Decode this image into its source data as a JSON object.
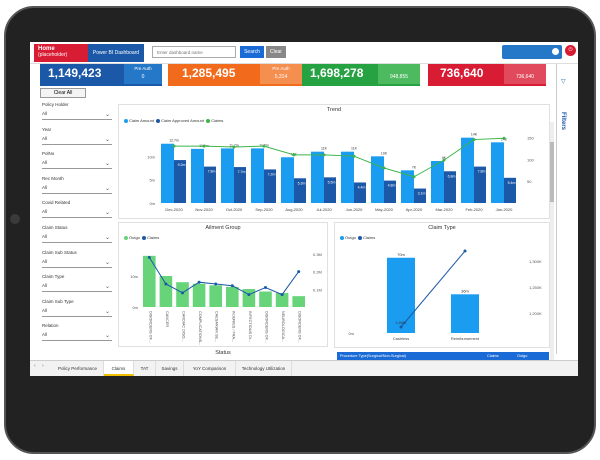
{
  "topbar": {
    "home_label": "Home",
    "home_sub": "(placeholder)",
    "app_title": "Power BI Dashboard",
    "search_placeholder": "Enter dashboard name",
    "search_label": "Search",
    "clear_label": "Clear"
  },
  "kpis": [
    {
      "value": "1,149,423",
      "sub_label": "Pre Auth",
      "sub_value": "0",
      "color": "#1b58a8",
      "sub_color": "#2578c8"
    },
    {
      "value": "1,285,495",
      "sub_label": "Pre Auth",
      "sub_value": "5,314",
      "color": "#f26b1d",
      "sub_color": "#f58f50"
    },
    {
      "value": "1,698,278",
      "sub_label": "",
      "sub_value": "948,855",
      "color": "#27a243",
      "sub_color": "#4dba60"
    },
    {
      "value": "736,640",
      "sub_label": "",
      "sub_value": "736,640",
      "color": "#d81c34",
      "sub_color": "#e04a5c"
    }
  ],
  "filters_panel": {
    "clear_all": "Clear All",
    "items": [
      {
        "label": "Policy Holder",
        "value": "All"
      },
      {
        "label": "Year",
        "value": "All"
      },
      {
        "label": "PolNo",
        "value": "All"
      },
      {
        "label": "Rec Month",
        "value": "All"
      },
      {
        "label": "Covid Related",
        "value": "All"
      },
      {
        "label": "Claim Status",
        "value": "All"
      },
      {
        "label": "Claim Sub Status",
        "value": "All"
      },
      {
        "label": "Claim Type",
        "value": "All"
      },
      {
        "label": "Claim Sub Type",
        "value": "All"
      },
      {
        "label": "Relation",
        "value": "All"
      }
    ]
  },
  "filters_pane_label": "Filters",
  "trend": {
    "title": "Trend",
    "legend": [
      "Claim Amount",
      "Claim Approved Amount",
      "Claims"
    ],
    "y_ticks": [
      "10m",
      "5m",
      "0m"
    ],
    "y2_ticks": [
      "150",
      "100",
      "50"
    ],
    "chart_data": {
      "type": "bar",
      "categories": [
        "Dec-2020",
        "Nov-2020",
        "Oct-2020",
        "Sep-2020",
        "Aug-2020",
        "Jul-2020",
        "Jun-2020",
        "May-2020",
        "Apr-2020",
        "Mar-2020",
        "Feb-2020",
        "Jan-2020"
      ],
      "series": [
        {
          "name": "Claim Amount",
          "values": [
            12.7,
            11.6,
            11.7,
            11.7,
            9.8,
            11.0,
            11.0,
            10.0,
            7.0,
            9.0,
            14.0,
            13.0
          ]
        },
        {
          "name": "Claim Approved Amount",
          "values": [
            9.2,
            7.8,
            7.7,
            7.2,
            5.3,
            5.5,
            4.4,
            4.8,
            3.1,
            6.8,
            7.8,
            5.4
          ]
        },
        {
          "name": "Claims",
          "values": [
            130,
            130,
            128,
            130,
            110,
            110,
            107,
            80,
            60,
            98,
            145,
            148
          ]
        }
      ],
      "bar_labels_amount": [
        "12.7m",
        "11.6m",
        "11.7m",
        "11.7m",
        "9.8m",
        "11m",
        "11m",
        "10m",
        "7m",
        "9m",
        "14m",
        "13m"
      ],
      "bar_labels_approved": [
        "9.2m",
        "7.8m",
        "7.7m",
        "7.2m",
        "5.3m",
        "5.5m",
        "4.4m",
        "4.8m",
        "3.1m",
        "6.8m",
        "7.8m",
        "5.4m"
      ],
      "line_labels": [
        "12.7m",
        "11.6m",
        "11.7m",
        "11.7m",
        "11K",
        "11K",
        "11K",
        "10K",
        "7K",
        "9K",
        "14K",
        "14K"
      ],
      "ylim": [
        0,
        15
      ],
      "y2lim": [
        0,
        160
      ]
    }
  },
  "ailment": {
    "title": "Ailment Group",
    "legend": [
      "Outgo",
      "Claims"
    ],
    "y_ticks": [
      "10m",
      "0m"
    ],
    "y2_ticks": [
      "0.3M",
      "0.2M",
      "0.1M"
    ],
    "chart_data": {
      "type": "bar",
      "categories": [
        "DISORDERS OF...",
        "CANCER",
        "CARDIAC DISO...",
        "COMPLICATIONS...",
        "CAESARIAN SE...",
        "INJURIES / FRA...",
        "INFECTIOUS DI...",
        "DISORDERS OF...",
        "NEUROLOGICA...",
        "DISORDERS OF..."
      ],
      "series": [
        {
          "name": "Outgo",
          "values": [
            16.5,
            10.0,
            8.0,
            7.5,
            7.0,
            6.5,
            5.8,
            5.0,
            4.5,
            3.5
          ]
        },
        {
          "name": "Claims",
          "values": [
            0.28,
            0.13,
            0.08,
            0.14,
            0.13,
            0.12,
            0.07,
            0.11,
            0.07,
            0.2
          ]
        }
      ],
      "ylim": [
        0,
        20
      ],
      "y2lim": [
        0,
        0.35
      ]
    }
  },
  "claimtype": {
    "title": "Claim Type",
    "legend": [
      "Outgo",
      "Claims"
    ],
    "y_ticks": [
      "70m",
      "0m"
    ],
    "y2_ticks": [
      "1,200K",
      "1,250K",
      "1,300K"
    ],
    "chart_data": {
      "type": "bar",
      "categories": [
        "Cashless",
        "Reimbursement"
      ],
      "series": [
        {
          "name": "Outgo",
          "values": [
            70,
            36
          ]
        },
        {
          "name": "Claims",
          "values": [
            1.2,
            1.3
          ]
        }
      ],
      "bar_labels": [
        "70m",
        "36m"
      ],
      "line_labels": [
        "1,169K",
        ""
      ],
      "ylim": [
        0,
        80
      ]
    }
  },
  "status": {
    "title": "Status"
  },
  "proc_table": {
    "col1": "Procedure Type(Surgical/Non-Surgical)",
    "col2": "Claims",
    "col3": "Outgo"
  },
  "tabs": [
    "Policy Performance",
    "Claims",
    "TAT",
    "Savings",
    "YoY Comparison",
    "Technology Utilization"
  ],
  "active_tab": "Claims",
  "colors": {
    "amount": "#1a9cf0",
    "approved": "#1b58a8",
    "claims_line": "#3bb54a",
    "outgo_green": "#67d47a",
    "claims_blue": "#1b58a8"
  }
}
